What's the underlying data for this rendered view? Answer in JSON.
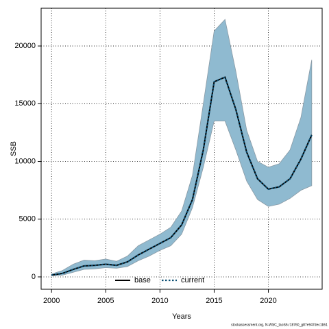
{
  "chart_data": {
    "type": "line",
    "xlabel": "Years",
    "ylabel": "SSB",
    "footnote": "stockassessment.org, N-WSC_taoS5.r18760_g87e947dec1b51",
    "x": [
      2000,
      2001,
      2002,
      2003,
      2004,
      2005,
      2006,
      2007,
      2008,
      2009,
      2010,
      2011,
      2012,
      2013,
      2014,
      2015,
      2016,
      2017,
      2018,
      2019,
      2020,
      2021,
      2022,
      2023,
      2024
    ],
    "series": [
      {
        "name": "base",
        "color": "#000000",
        "values": [
          150,
          300,
          650,
          950,
          1000,
          1100,
          1000,
          1300,
          1900,
          2400,
          2900,
          3400,
          4500,
          6700,
          11000,
          16900,
          17300,
          14500,
          10800,
          8500,
          7600,
          7800,
          8500,
          10200,
          12300
        ]
      },
      {
        "name": "current",
        "color": "#0b4f73",
        "values": [
          150,
          300,
          650,
          950,
          1000,
          1100,
          1000,
          1300,
          1900,
          2400,
          2900,
          3400,
          4500,
          6700,
          11000,
          16900,
          17300,
          14500,
          10800,
          8500,
          7600,
          7800,
          8500,
          10200,
          12300
        ]
      }
    ],
    "band": {
      "color": "#8fbad0",
      "upper": [
        250,
        550,
        1100,
        1450,
        1400,
        1550,
        1350,
        1800,
        2700,
        3200,
        3700,
        4300,
        5700,
        8800,
        15000,
        21300,
        22300,
        17800,
        12700,
        10000,
        9500,
        9800,
        11000,
        13800,
        18800
      ],
      "lower": [
        100,
        150,
        400,
        650,
        700,
        800,
        750,
        900,
        1400,
        1800,
        2300,
        2700,
        3700,
        6000,
        9500,
        13500,
        13500,
        11000,
        8300,
        6700,
        6100,
        6300,
        6800,
        7500,
        7900
      ]
    },
    "xlim": [
      1999.04,
      2024.96
    ],
    "xticks": [
      2000,
      2005,
      2010,
      2015,
      2020
    ],
    "ylim": [
      -1070,
      23270
    ],
    "yticks": [
      0,
      5000,
      10000,
      15000,
      20000
    ],
    "grid": true,
    "legend": "bottom"
  }
}
